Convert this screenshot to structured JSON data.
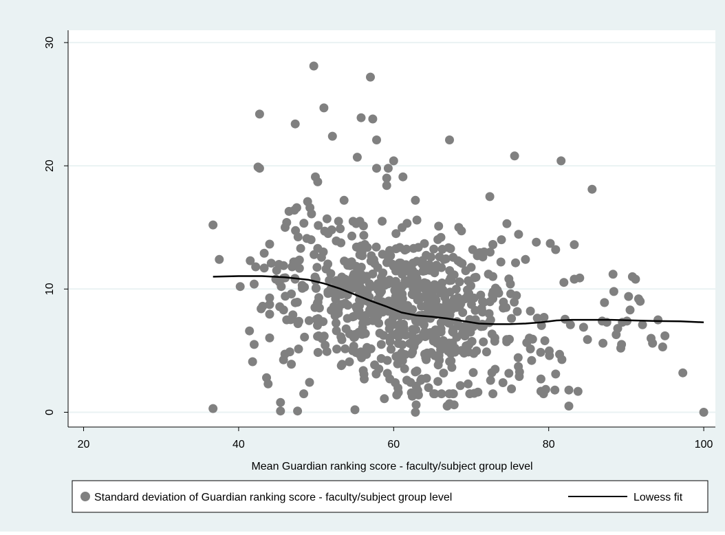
{
  "chart_data": {
    "type": "scatter",
    "title": "",
    "xlabel": "Mean Guardian ranking score - faculty/subject group level",
    "ylabel": "",
    "xlim": [
      18,
      101.5
    ],
    "ylim": [
      -1.2,
      31
    ],
    "xticks": [
      20,
      40,
      60,
      80,
      100
    ],
    "yticks": [
      0,
      10,
      20,
      30
    ],
    "grid": "horizontal",
    "legend_position": "bottom",
    "colors": {
      "outer_background": "#eaf2f3",
      "plot_background": "#ffffff",
      "grid": "#eaf2f3",
      "marker": "#808080",
      "fit_line": "#000000"
    },
    "series": [
      {
        "name": "Standard deviation of Guardian ranking score - faculty/subject group level",
        "type": "scatter",
        "points": [
          [
            36.7,
            15.2
          ],
          [
            36.7,
            0.3
          ],
          [
            37.5,
            12.4
          ],
          [
            40.2,
            10.2
          ],
          [
            41.4,
            6.6
          ],
          [
            41.5,
            12.3
          ],
          [
            41.8,
            4.1
          ],
          [
            42.0,
            5.5
          ],
          [
            42.0,
            10.4
          ],
          [
            42.2,
            11.8
          ],
          [
            42.5,
            19.9
          ],
          [
            42.7,
            19.8
          ],
          [
            42.7,
            24.2
          ],
          [
            42.9,
            8.4
          ],
          [
            43.1,
            8.6
          ],
          [
            43.3,
            11.7
          ],
          [
            43.3,
            12.9
          ],
          [
            43.6,
            2.8
          ],
          [
            43.8,
            2.3
          ],
          [
            44.2,
            12.1
          ],
          [
            44.8,
            10.8
          ],
          [
            45.2,
            12.0
          ],
          [
            45.4,
            0.8
          ],
          [
            45.4,
            0.1
          ],
          [
            45.5,
            10.2
          ],
          [
            45.8,
            8.3
          ],
          [
            45.8,
            11.9
          ],
          [
            46.0,
            15.0
          ],
          [
            46.2,
            15.4
          ],
          [
            46.2,
            7.5
          ],
          [
            46.5,
            16.3
          ],
          [
            46.6,
            4.9
          ],
          [
            46.8,
            9.6
          ],
          [
            46.9,
            11.8
          ],
          [
            47.0,
            7.9
          ],
          [
            47.2,
            16.4
          ],
          [
            47.3,
            23.4
          ],
          [
            47.4,
            12.2
          ],
          [
            47.5,
            16.6
          ],
          [
            47.6,
            0.1
          ],
          [
            48.0,
            13.3
          ],
          [
            48.2,
            10.3
          ],
          [
            48.4,
            1.5
          ],
          [
            48.5,
            6.1
          ],
          [
            48.9,
            17.1
          ],
          [
            49.2,
            16.6
          ],
          [
            49.4,
            16.1
          ],
          [
            49.7,
            28.1
          ],
          [
            49.9,
            19.1
          ],
          [
            50.2,
            18.7
          ],
          [
            51.0,
            24.7
          ],
          [
            51.4,
            15.7
          ],
          [
            52.1,
            22.4
          ],
          [
            52.6,
            13.9
          ],
          [
            53.6,
            17.2
          ],
          [
            54.6,
            14.3
          ],
          [
            55.0,
            0.2
          ],
          [
            55.3,
            20.7
          ],
          [
            55.8,
            23.9
          ],
          [
            56.2,
            2.7
          ],
          [
            57.0,
            27.2
          ],
          [
            57.3,
            23.8
          ],
          [
            57.8,
            22.1
          ],
          [
            57.8,
            19.8
          ],
          [
            58.4,
            5.5
          ],
          [
            58.8,
            1.1
          ],
          [
            59.1,
            18.4
          ],
          [
            59.1,
            19.0
          ],
          [
            59.3,
            19.8
          ],
          [
            59.6,
            12.7
          ],
          [
            60.0,
            20.4
          ],
          [
            60.2,
            2.4
          ],
          [
            60.6,
            1.6
          ],
          [
            61.2,
            19.1
          ],
          [
            61.7,
            2.6
          ],
          [
            62.4,
            1.3
          ],
          [
            62.8,
            17.2
          ],
          [
            62.8,
            0.0
          ],
          [
            62.9,
            0.6
          ],
          [
            63.0,
            15.6
          ],
          [
            63.2,
            1.4
          ],
          [
            63.6,
            2.7
          ],
          [
            64.5,
            2.0
          ],
          [
            65.3,
            1.5
          ],
          [
            65.7,
            2.5
          ],
          [
            65.8,
            15.1
          ],
          [
            66.5,
            12.4
          ],
          [
            66.9,
            0.5
          ],
          [
            67.2,
            0.7
          ],
          [
            67.2,
            22.1
          ],
          [
            67.8,
            0.6
          ],
          [
            68.3,
            12.3
          ],
          [
            68.4,
            15.0
          ],
          [
            69.6,
            2.3
          ],
          [
            70.2,
            13.2
          ],
          [
            70.8,
            12.7
          ],
          [
            71.5,
            12.6
          ],
          [
            72.4,
            17.5
          ],
          [
            72.8,
            13.6
          ],
          [
            73.9,
            14.0
          ],
          [
            74.1,
            2.4
          ],
          [
            74.6,
            15.3
          ],
          [
            75.6,
            20.8
          ],
          [
            76.2,
            2.9
          ],
          [
            77.0,
            12.4
          ],
          [
            78.4,
            13.8
          ],
          [
            79.0,
            1.7
          ],
          [
            79.0,
            2.7
          ],
          [
            79.4,
            7.7
          ],
          [
            80.2,
            13.7
          ],
          [
            80.8,
            1.8
          ],
          [
            80.9,
            3.1
          ],
          [
            80.9,
            13.2
          ],
          [
            81.6,
            20.4
          ],
          [
            82.6,
            0.5
          ],
          [
            82.6,
            1.8
          ],
          [
            82.8,
            7.1
          ],
          [
            83.3,
            10.8
          ],
          [
            83.3,
            13.6
          ],
          [
            84.0,
            10.9
          ],
          [
            84.5,
            6.9
          ],
          [
            85.0,
            5.9
          ],
          [
            85.6,
            18.1
          ],
          [
            86.9,
            7.4
          ],
          [
            87.0,
            5.6
          ],
          [
            87.2,
            8.9
          ],
          [
            87.5,
            7.3
          ],
          [
            88.3,
            11.2
          ],
          [
            88.4,
            9.8
          ],
          [
            88.7,
            6.3
          ],
          [
            88.9,
            6.8
          ],
          [
            89.3,
            5.2
          ],
          [
            89.4,
            5.5
          ],
          [
            89.5,
            7.3
          ],
          [
            90.1,
            7.4
          ],
          [
            90.3,
            9.4
          ],
          [
            90.5,
            8.3
          ],
          [
            90.8,
            11.0
          ],
          [
            91.2,
            10.8
          ],
          [
            91.6,
            9.2
          ],
          [
            91.8,
            9.0
          ],
          [
            92.1,
            7.1
          ],
          [
            93.2,
            6.0
          ],
          [
            93.4,
            5.6
          ],
          [
            94.1,
            7.5
          ],
          [
            94.7,
            5.3
          ],
          [
            95.0,
            6.2
          ],
          [
            97.3,
            3.2
          ],
          [
            100.0,
            0.0
          ],
          [
            46.8,
            3.9
          ],
          [
            48.8,
            14.1
          ],
          [
            50.2,
            13.3
          ],
          [
            51.1,
            14.7
          ],
          [
            52.0,
            14.8
          ],
          [
            54.4,
            11.9
          ],
          [
            60.4,
            1.4
          ],
          [
            75.2,
            1.9
          ],
          [
            77.8,
            4.2
          ],
          [
            80.1,
            4.6
          ],
          [
            81.4,
            4.7
          ]
        ],
        "cloud": {
          "n": 640,
          "center": [
            62.0,
            8.5
          ],
          "x_sd": 7.5,
          "y_sd": 3.0,
          "x_range": [
            44,
            84
          ],
          "y_range": [
            1.5,
            15.5
          ]
        }
      },
      {
        "name": "Lowess fit",
        "type": "line",
        "points": [
          [
            36.7,
            11.0
          ],
          [
            40.0,
            11.05
          ],
          [
            43.0,
            11.05
          ],
          [
            46.0,
            10.95
          ],
          [
            49.0,
            10.75
          ],
          [
            51.0,
            10.45
          ],
          [
            53.0,
            10.05
          ],
          [
            55.0,
            9.55
          ],
          [
            57.0,
            9.05
          ],
          [
            59.0,
            8.6
          ],
          [
            61.0,
            8.1
          ],
          [
            63.0,
            7.85
          ],
          [
            65.0,
            7.75
          ],
          [
            67.0,
            7.6
          ],
          [
            69.0,
            7.4
          ],
          [
            71.0,
            7.2
          ],
          [
            73.0,
            7.15
          ],
          [
            75.0,
            7.15
          ],
          [
            77.0,
            7.2
          ],
          [
            79.0,
            7.3
          ],
          [
            81.0,
            7.45
          ],
          [
            83.0,
            7.5
          ],
          [
            85.0,
            7.5
          ],
          [
            88.0,
            7.5
          ],
          [
            91.0,
            7.45
          ],
          [
            94.0,
            7.4
          ],
          [
            97.0,
            7.38
          ],
          [
            100.0,
            7.3
          ]
        ]
      }
    ]
  }
}
